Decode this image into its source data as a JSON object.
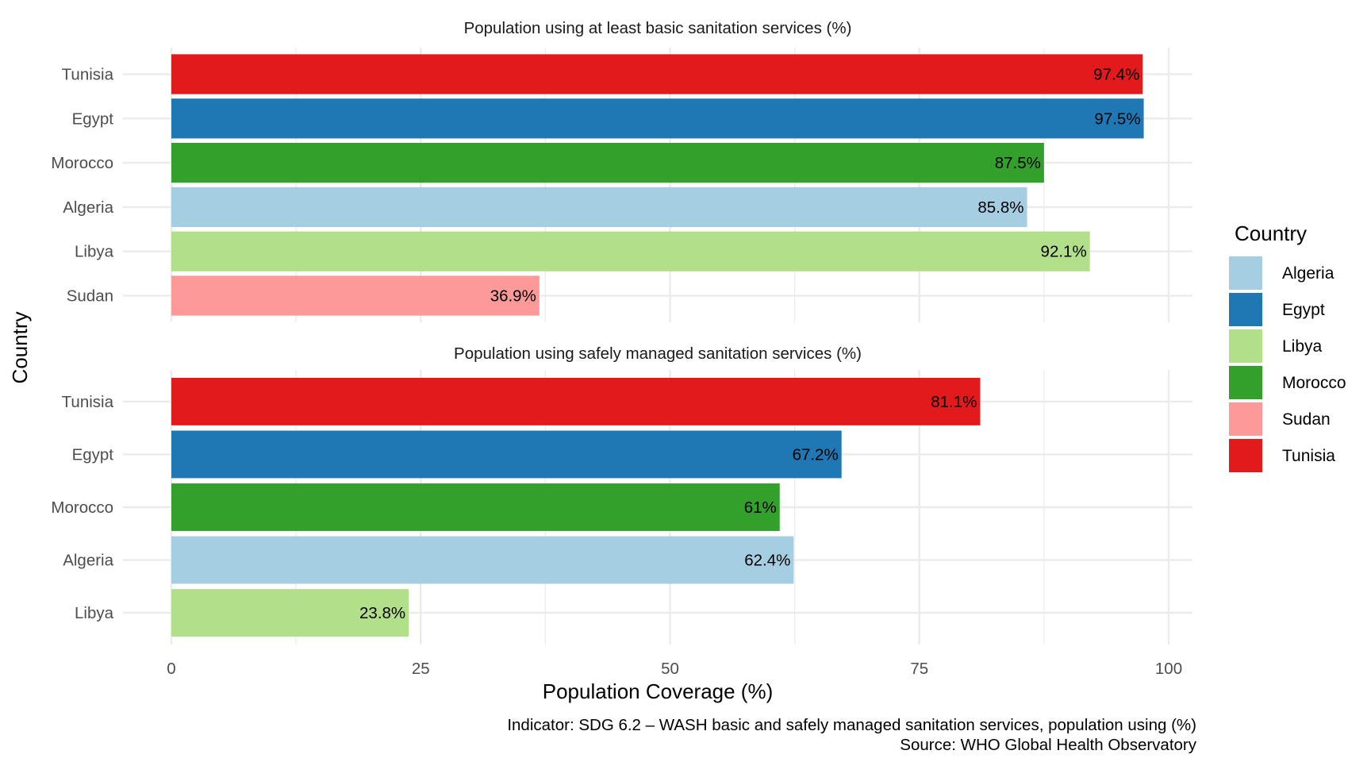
{
  "chart_data": {
    "type": "bar",
    "orientation": "horizontal",
    "xlabel": "Population Coverage (%)",
    "ylabel": "Country",
    "xlim": [
      0,
      100
    ],
    "x_ticks": [
      0,
      25,
      50,
      75,
      100
    ],
    "grid": true,
    "legend": {
      "title": "Country",
      "placement": "right",
      "entries": [
        {
          "name": "Algeria",
          "color": "#A6CEE3"
        },
        {
          "name": "Egypt",
          "color": "#1F78B4"
        },
        {
          "name": "Libya",
          "color": "#B2DF8A"
        },
        {
          "name": "Morocco",
          "color": "#33A02C"
        },
        {
          "name": "Sudan",
          "color": "#FB9A99"
        },
        {
          "name": "Tunisia",
          "color": "#E31A1C"
        }
      ]
    },
    "panels": [
      {
        "title": "Population using at least basic sanitation services (%)",
        "categories": [
          "Tunisia",
          "Egypt",
          "Morocco",
          "Algeria",
          "Libya",
          "Sudan"
        ],
        "values": [
          97.4,
          97.5,
          87.5,
          85.8,
          92.1,
          36.9
        ],
        "labels": [
          "97.4%",
          "97.5%",
          "87.5%",
          "85.8%",
          "92.1%",
          "36.9%"
        ]
      },
      {
        "title": "Population using safely managed sanitation services (%)",
        "categories": [
          "Tunisia",
          "Egypt",
          "Morocco",
          "Algeria",
          "Libya"
        ],
        "values": [
          81.1,
          67.2,
          61.0,
          62.4,
          23.8
        ],
        "labels": [
          "81.1%",
          "67.2%",
          "61%",
          "62.4%",
          "23.8%"
        ]
      }
    ],
    "caption": [
      "Indicator: SDG 6.2 – WASH basic and safely managed sanitation services, population using (%)",
      "Source: WHO Global Health Observatory"
    ]
  }
}
